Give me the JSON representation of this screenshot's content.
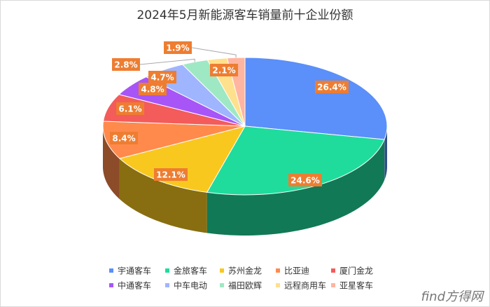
{
  "chart_data": {
    "type": "pie3d",
    "title": "2024年5月新能源客车销量前十企业份额",
    "categories": [
      "宇通客车",
      "金旅客车",
      "苏州金龙",
      "比亚迪",
      "厦门金龙",
      "中通客车",
      "中车电动",
      "福田欧辉",
      "远程商用车",
      "亚星客车"
    ],
    "values": [
      26.4,
      24.6,
      12.1,
      8.4,
      6.1,
      4.8,
      4.7,
      2.8,
      2.1,
      1.9
    ],
    "value_labels": [
      "26.4%",
      "24.6%",
      "12.1%",
      "8.4%",
      "6.1%",
      "4.8%",
      "4.7%",
      "2.8%",
      "2.1%",
      "1.9%"
    ],
    "colors": [
      "#5b8ff9",
      "#1fdc9c",
      "#f8c81e",
      "#ff8a4c",
      "#f45b5b",
      "#a855f7",
      "#9fb5ff",
      "#9fe8c4",
      "#ffe08c",
      "#ffb5a0"
    ],
    "legend": "bottom",
    "watermark": "find方得网"
  }
}
